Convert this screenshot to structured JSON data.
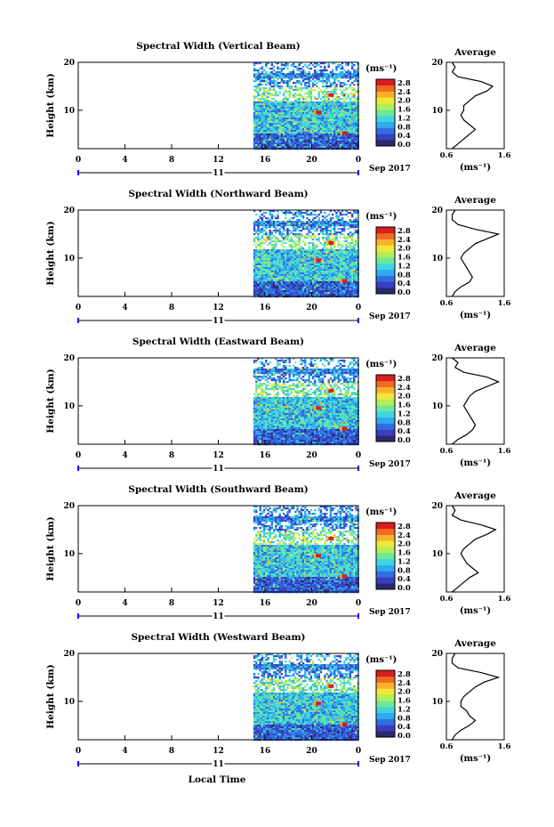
{
  "figure": {
    "x_axis_label": "Local Time",
    "day_label": "11",
    "month_label": "Sep 2017",
    "y_axis_label": "Height (km)",
    "colorbar_unit": "(ms⁻¹)",
    "colorbar_ticks": [
      "2.8",
      "2.4",
      "2.0",
      "1.6",
      "1.2",
      "0.8",
      "0.4",
      "0.0"
    ],
    "colormap": [
      "#2a2a6a",
      "#3a3ec0",
      "#2f6fe0",
      "#2fa9ef",
      "#40d6e0",
      "#6de89a",
      "#b4ee55",
      "#efe83a",
      "#f8b22a",
      "#f06a20",
      "#d81e1e"
    ],
    "average_title": "Average",
    "average_unit": "(ms⁻¹)",
    "average_ticks": [
      "0.6",
      "1.6"
    ]
  },
  "chart_data": [
    {
      "type": "heatmap",
      "title": "Spectral Width (Vertical Beam)",
      "x": [
        0,
        4,
        8,
        12,
        16,
        20,
        0
      ],
      "x_tick_labels": [
        "0",
        "4",
        "8",
        "12",
        "16",
        "20",
        "0"
      ],
      "xlim": [
        0,
        24
      ],
      "ylim": [
        2,
        20
      ],
      "y_tick_labels": [
        "20",
        "10"
      ],
      "data_start_hour": 15,
      "data_end_hour": 24,
      "value_range": [
        0.0,
        2.8
      ],
      "average_profile": {
        "title": "Average",
        "height": [
          2,
          3,
          4,
          5,
          6,
          7,
          8,
          9,
          10,
          11,
          12,
          13,
          14,
          15,
          16,
          17,
          18,
          19,
          20
        ],
        "value": [
          0.7,
          0.8,
          0.9,
          1.0,
          1.1,
          1.0,
          0.9,
          0.85,
          0.9,
          0.9,
          1.0,
          1.1,
          1.3,
          1.4,
          1.2,
          0.8,
          0.7,
          0.75,
          0.7
        ],
        "xlim": [
          0.6,
          1.6
        ]
      }
    },
    {
      "type": "heatmap",
      "title": "Spectral Width (Northward Beam)",
      "x": [
        0,
        4,
        8,
        12,
        16,
        20,
        0
      ],
      "x_tick_labels": [
        "0",
        "4",
        "8",
        "12",
        "16",
        "20",
        "0"
      ],
      "xlim": [
        0,
        24
      ],
      "ylim": [
        2,
        20
      ],
      "y_tick_labels": [
        "20",
        "10"
      ],
      "data_start_hour": 15,
      "data_end_hour": 24,
      "value_range": [
        0.0,
        2.8
      ],
      "average_profile": {
        "title": "Average",
        "height": [
          2,
          3,
          4,
          5,
          6,
          7,
          8,
          9,
          10,
          11,
          12,
          13,
          14,
          15,
          16,
          17,
          18,
          19,
          20
        ],
        "value": [
          0.7,
          0.75,
          0.85,
          1.0,
          1.05,
          1.0,
          0.95,
          0.9,
          0.85,
          0.9,
          1.0,
          1.1,
          1.3,
          1.5,
          1.1,
          0.8,
          0.7,
          0.7,
          0.75
        ],
        "xlim": [
          0.6,
          1.6
        ]
      }
    },
    {
      "type": "heatmap",
      "title": "Spectral Width (Eastward Beam)",
      "x": [
        0,
        4,
        8,
        12,
        16,
        20,
        0
      ],
      "x_tick_labels": [
        "0",
        "4",
        "8",
        "12",
        "16",
        "20",
        "0"
      ],
      "xlim": [
        0,
        24
      ],
      "ylim": [
        2,
        20
      ],
      "y_tick_labels": [
        "20",
        "10"
      ],
      "data_start_hour": 15,
      "data_end_hour": 24,
      "value_range": [
        0.0,
        2.8
      ],
      "average_profile": {
        "title": "Average",
        "height": [
          2,
          3,
          4,
          5,
          6,
          7,
          8,
          9,
          10,
          11,
          12,
          13,
          14,
          15,
          16,
          17,
          18,
          19,
          20
        ],
        "value": [
          0.7,
          0.8,
          0.95,
          1.05,
          1.1,
          1.05,
          1.0,
          0.95,
          0.9,
          0.95,
          1.0,
          1.1,
          1.3,
          1.5,
          1.3,
          0.9,
          0.75,
          0.8,
          0.7
        ],
        "xlim": [
          0.6,
          1.6
        ]
      }
    },
    {
      "type": "heatmap",
      "title": "Spectral Width (Southward Beam)",
      "x": [
        0,
        4,
        8,
        12,
        16,
        20,
        0
      ],
      "x_tick_labels": [
        "0",
        "4",
        "8",
        "12",
        "16",
        "20",
        "0"
      ],
      "xlim": [
        0,
        24
      ],
      "ylim": [
        2,
        20
      ],
      "y_tick_labels": [
        "20",
        "10"
      ],
      "data_start_hour": 15,
      "data_end_hour": 24,
      "value_range": [
        0.0,
        2.8
      ],
      "average_profile": {
        "title": "Average",
        "height": [
          2,
          3,
          4,
          5,
          6,
          7,
          8,
          9,
          10,
          11,
          12,
          13,
          14,
          15,
          16,
          17,
          18,
          19,
          20
        ],
        "value": [
          0.7,
          0.8,
          0.9,
          1.0,
          1.15,
          1.05,
          0.95,
          0.9,
          0.85,
          0.9,
          1.0,
          1.1,
          1.3,
          1.45,
          1.2,
          0.85,
          0.7,
          0.75,
          0.7
        ],
        "xlim": [
          0.6,
          1.6
        ]
      }
    },
    {
      "type": "heatmap",
      "title": "Spectral Width (Westward Beam)",
      "x": [
        0,
        4,
        8,
        12,
        16,
        20,
        0
      ],
      "x_tick_labels": [
        "0",
        "4",
        "8",
        "12",
        "16",
        "20",
        "0"
      ],
      "xlim": [
        0,
        24
      ],
      "ylim": [
        2,
        20
      ],
      "y_tick_labels": [
        "20",
        "10"
      ],
      "data_start_hour": 15,
      "data_end_hour": 24,
      "value_range": [
        0.0,
        2.8
      ],
      "average_profile": {
        "title": "Average",
        "height": [
          2,
          3,
          4,
          5,
          6,
          7,
          8,
          9,
          10,
          11,
          12,
          13,
          14,
          15,
          16,
          17,
          18,
          19,
          20
        ],
        "value": [
          0.7,
          0.75,
          0.85,
          1.0,
          1.1,
          1.0,
          0.95,
          0.85,
          0.85,
          0.9,
          1.0,
          1.1,
          1.25,
          1.5,
          1.2,
          0.8,
          0.7,
          0.7,
          0.75
        ],
        "xlim": [
          0.6,
          1.6
        ]
      }
    }
  ]
}
